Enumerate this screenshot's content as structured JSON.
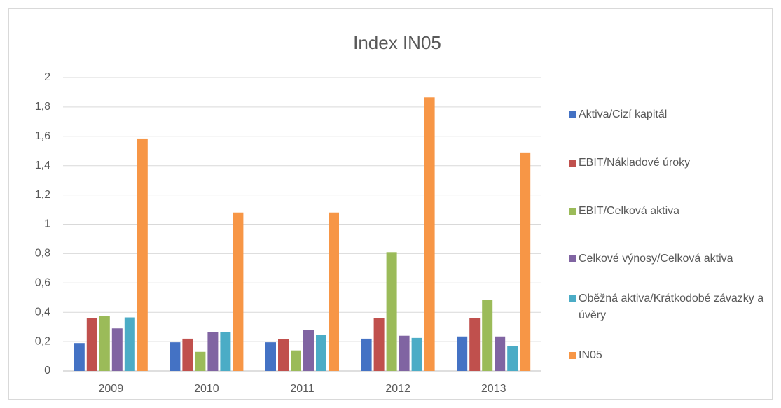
{
  "chart_data": {
    "type": "bar",
    "title": "Index IN05",
    "categories": [
      "2009",
      "2010",
      "2011",
      "2012",
      "2013"
    ],
    "series": [
      {
        "name": "Aktiva/Cizí kapitál",
        "color": "#4472c4",
        "values": [
          0.19,
          0.195,
          0.195,
          0.22,
          0.235
        ]
      },
      {
        "name": "EBIT/Nákladové úroky",
        "color": "#c0504d",
        "values": [
          0.36,
          0.22,
          0.215,
          0.36,
          0.36
        ]
      },
      {
        "name": "EBIT/Celková aktiva",
        "color": "#9bbb59",
        "values": [
          0.375,
          0.13,
          0.14,
          0.81,
          0.485
        ]
      },
      {
        "name": "Celkové výnosy/Celková aktiva",
        "color": "#8064a2",
        "values": [
          0.29,
          0.265,
          0.28,
          0.24,
          0.235
        ]
      },
      {
        "name": "Oběžná aktiva/Krátkodobé závazky a úvěry",
        "color": "#4bacc6",
        "values": [
          0.365,
          0.265,
          0.245,
          0.225,
          0.17
        ]
      },
      {
        "name": "IN05",
        "color": "#f79646",
        "values": [
          1.585,
          1.08,
          1.08,
          1.865,
          1.49
        ]
      }
    ],
    "ylim": [
      0,
      2
    ],
    "yticks": [
      0,
      {
        "value": 0.2,
        "label": "0,2"
      },
      {
        "value": 0.4,
        "label": "0,4"
      },
      {
        "value": 0.6,
        "label": "0,6"
      },
      {
        "value": 0.8,
        "label": "0,8"
      },
      1,
      {
        "value": 1.2,
        "label": "1,2"
      },
      {
        "value": 1.4,
        "label": "1,4"
      },
      {
        "value": 1.6,
        "label": "1,6"
      },
      {
        "value": 1.8,
        "label": "1,8"
      },
      2
    ],
    "grid": true,
    "legend": "right"
  }
}
